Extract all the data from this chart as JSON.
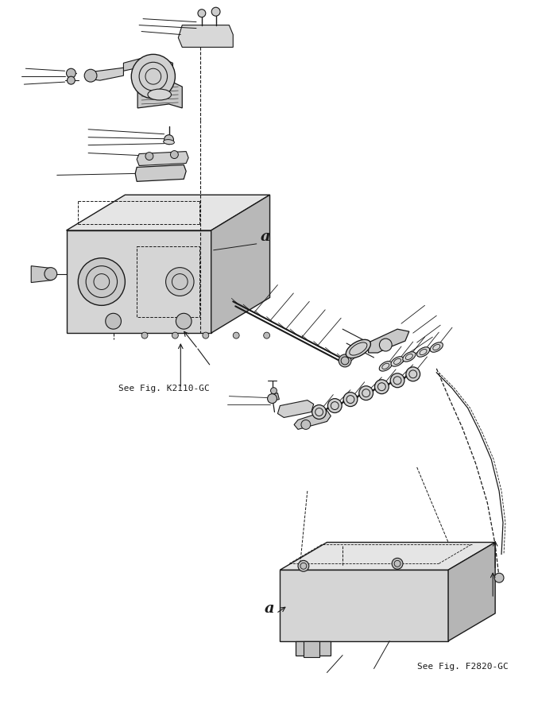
{
  "bg_color": "#ffffff",
  "line_color": "#1a1a1a",
  "text_color": "#1a1a1a",
  "label_a1": "a",
  "label_a2": "a",
  "ref1": "See Fig. K2110-GC",
  "ref2": "See Fig. F2820-GC",
  "fig_width": 6.72,
  "fig_height": 8.87
}
